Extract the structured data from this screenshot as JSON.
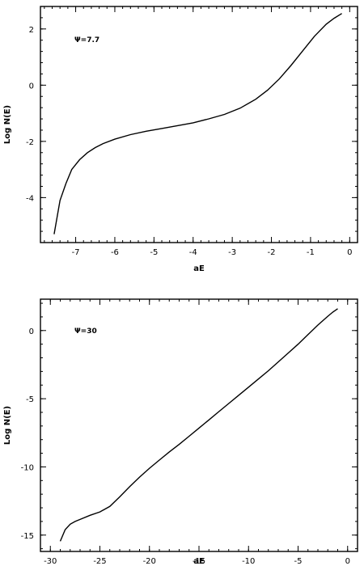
{
  "chart_data": [
    {
      "type": "line",
      "title": "",
      "xlabel": "aE",
      "ylabel": "Log N(E)",
      "xlim": [
        -7.9,
        0.2
      ],
      "ylim": [
        -5.6,
        2.8
      ],
      "x_major_ticks": [
        -7,
        -6,
        -5,
        -4,
        -3,
        -2,
        -1,
        0
      ],
      "x_tick_labels": [
        "-7",
        "-6",
        "-5",
        "-4",
        "-3",
        "-2",
        "-1",
        "0"
      ],
      "x_minor_step": 0.2,
      "y_major_ticks": [
        -4,
        -2,
        0,
        2
      ],
      "y_tick_labels": [
        "-4",
        "-2",
        "0",
        "2"
      ],
      "y_minor_step": 0.4,
      "grid": false,
      "annotation": "Ψ=7.7",
      "series": [
        {
          "x": [
            -7.55,
            -7.4,
            -7.25,
            -7.1,
            -6.9,
            -6.7,
            -6.5,
            -6.3,
            -6.0,
            -5.6,
            -5.2,
            -4.8,
            -4.4,
            -4.0,
            -3.6,
            -3.2,
            -2.8,
            -2.4,
            -2.1,
            -1.8,
            -1.5,
            -1.2,
            -0.9,
            -0.6,
            -0.4,
            -0.2
          ],
          "y": [
            -5.3,
            -4.1,
            -3.5,
            -3.0,
            -2.65,
            -2.4,
            -2.22,
            -2.08,
            -1.92,
            -1.76,
            -1.64,
            -1.54,
            -1.44,
            -1.34,
            -1.2,
            -1.04,
            -0.82,
            -0.5,
            -0.18,
            0.22,
            0.7,
            1.22,
            1.74,
            2.17,
            2.38,
            2.55
          ]
        }
      ]
    },
    {
      "type": "line",
      "title": "",
      "xlabel": "aE",
      "ylabel": "Log N(E)",
      "xlim": [
        -31,
        1.0
      ],
      "ylim": [
        -16.2,
        2.3
      ],
      "x_major_ticks": [
        -30,
        -25,
        -20,
        -15,
        -10,
        -5,
        0
      ],
      "x_tick_labels": [
        "-30",
        "-25",
        "-20",
        "-15",
        "-10",
        "-5",
        "0"
      ],
      "x_minor_step": 1,
      "y_major_ticks": [
        -15,
        -10,
        -5,
        0
      ],
      "y_tick_labels": [
        "-15",
        "-10",
        "-5",
        "0"
      ],
      "y_minor_step": 1,
      "grid": false,
      "annotation": "Ψ=30",
      "series": [
        {
          "x": [
            -29.0,
            -28.5,
            -28.0,
            -27.5,
            -27.0,
            -26.0,
            -25.0,
            -24.0,
            -23.0,
            -22.0,
            -21.0,
            -20.0,
            -19.0,
            -18.0,
            -17.0,
            -16.0,
            -15.0,
            -14.0,
            -13.0,
            -12.0,
            -11.0,
            -10.0,
            -9.0,
            -8.0,
            -7.0,
            -6.0,
            -5.0,
            -4.0,
            -3.0,
            -2.0,
            -1.5,
            -1.0
          ],
          "y": [
            -15.45,
            -14.6,
            -14.2,
            -14.0,
            -13.85,
            -13.55,
            -13.3,
            -12.9,
            -12.2,
            -11.45,
            -10.75,
            -10.1,
            -9.5,
            -8.9,
            -8.35,
            -7.75,
            -7.15,
            -6.55,
            -5.95,
            -5.35,
            -4.75,
            -4.15,
            -3.55,
            -2.95,
            -2.3,
            -1.65,
            -1.0,
            -0.3,
            0.4,
            1.05,
            1.35,
            1.6
          ]
        }
      ]
    }
  ]
}
